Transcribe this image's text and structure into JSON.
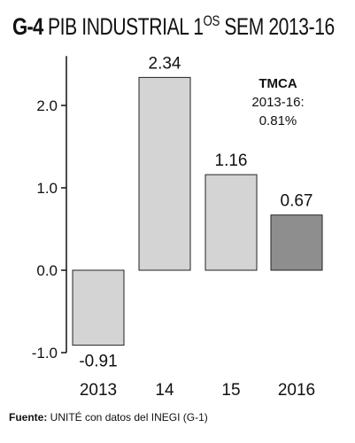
{
  "title": {
    "code": "G-4",
    "text_main": "PIB INDUSTRIAL 1",
    "text_sup": "OS",
    "text_tail": " SEM 2013-16"
  },
  "annotation": {
    "heading": "TMCA",
    "line1": "2013-16:",
    "line2": "0.81%"
  },
  "source": {
    "label": "Fuente:",
    "text": " UNITÉ con datos del INEGI (G-1)"
  },
  "colors": {
    "bar_default": "#d4d4d4",
    "bar_highlight": "#8e8e8e",
    "bar_stroke": "#222222"
  },
  "chart_data": {
    "type": "bar",
    "categories": [
      "2013",
      "14",
      "15",
      "2016"
    ],
    "values": [
      -0.91,
      2.34,
      1.16,
      0.67
    ],
    "value_labels": [
      "-0.91",
      "2.34",
      "1.16",
      "0.67"
    ],
    "highlight_index": 3,
    "ylim": [
      -1.0,
      2.6
    ],
    "yticks": [
      -1.0,
      0.0,
      1.0,
      2.0
    ],
    "ytick_labels": [
      "-1.0",
      "0.0",
      "1.0",
      "2.0"
    ],
    "xlabel": "",
    "ylabel": "",
    "grid": false,
    "legend": "none"
  }
}
